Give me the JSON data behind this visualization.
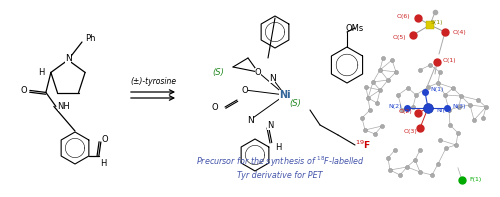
{
  "bg_color": "#ffffff",
  "fig_width": 5.0,
  "fig_height": 1.97,
  "dpi": 100,
  "caption_color": "#4455aa",
  "caption_line1": "Precursor for the synthesis of $^{18}$F-labelled",
  "caption_line2": "Tyr derivative for PET",
  "F19_color": "#cc0000",
  "S_color": "#228822",
  "Ni_color": "#336699",
  "arrow_label": "(±)-tyrosine",
  "OMs_text": "OMs"
}
